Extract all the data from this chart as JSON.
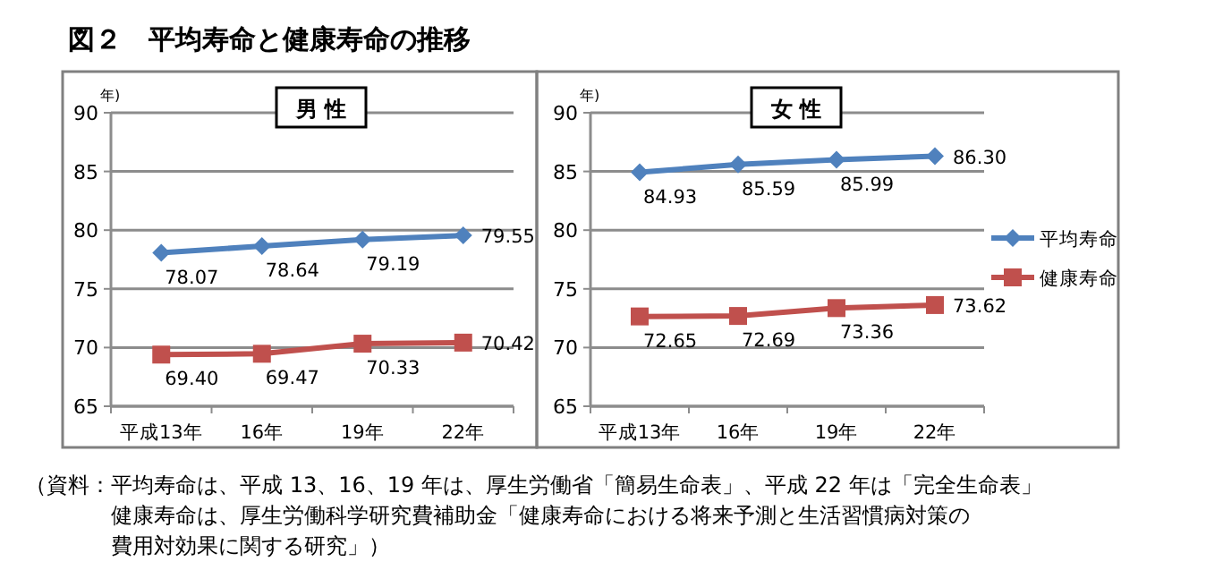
{
  "chart_data": [
    {
      "type": "line",
      "title": "図２　平均寿命と健康寿命の推移",
      "subtitle": "男 性",
      "ylabel": "年)",
      "categories": [
        "平成13年",
        "16年",
        "19年",
        "22年"
      ],
      "series": [
        {
          "color": "#4f81bd",
          "marker": "diamond",
          "values": [
            78.07,
            78.64,
            79.19,
            79.55
          ],
          "value_labels": [
            "78.07",
            "78.64",
            "79.19",
            "79.55"
          ]
        },
        {
          "color": "#c0504d",
          "marker": "square",
          "values": [
            69.4,
            69.47,
            70.33,
            70.42
          ],
          "value_labels": [
            "69.40",
            "69.47",
            "70.33",
            "70.42"
          ]
        }
      ],
      "ylim": [
        65,
        90
      ],
      "yticks": [
        65,
        70,
        75,
        80,
        85,
        90
      ],
      "grid": "y",
      "legend": false,
      "line_style": "solid"
    },
    {
      "type": "line",
      "subtitle": "女 性",
      "ylabel": "年)",
      "categories": [
        "平成13年",
        "16年",
        "19年",
        "22年"
      ],
      "series": [
        {
          "name": "平均寿命",
          "color": "#4f81bd",
          "marker": "diamond",
          "values": [
            84.93,
            85.59,
            85.99,
            86.3
          ],
          "value_labels": [
            "84.93",
            "85.59",
            "85.99",
            "86.30"
          ]
        },
        {
          "name": "健康寿命",
          "color": "#c0504d",
          "marker": "square",
          "values": [
            72.65,
            72.69,
            73.36,
            73.62
          ],
          "value_labels": [
            "72.65",
            "72.69",
            "73.36",
            "73.62"
          ]
        }
      ],
      "ylim": [
        65,
        90
      ],
      "yticks": [
        65,
        70,
        75,
        80,
        85,
        90
      ],
      "grid": "y",
      "legend": "right",
      "line_style": "solid",
      "annotations": [
        "（資料：平均寿命は、平成 13、16、19 年は、厚生労働省「簡易生命表」、平成 22 年は「完全生命表」",
        "健康寿命は、厚生労働科学研究費補助金「健康寿命における将来予測と生活習慣病対策の",
        "費用対効果に関する研究」）"
      ]
    }
  ]
}
